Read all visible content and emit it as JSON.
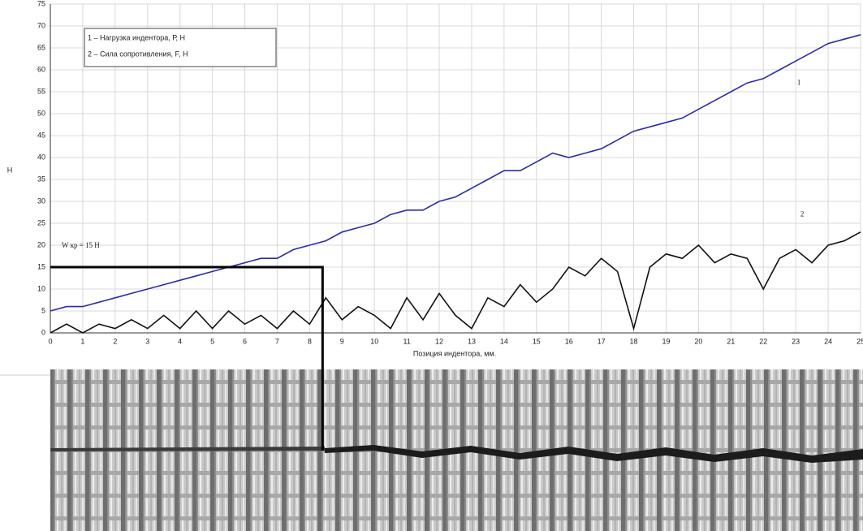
{
  "chart_data": {
    "type": "line",
    "y_label": "Н",
    "x_label": "Позиция индентора, мм.",
    "x": [
      0,
      0.5,
      1,
      1.5,
      2,
      2.5,
      3,
      3.5,
      4,
      4.5,
      5,
      5.5,
      6,
      6.5,
      7,
      7.5,
      8,
      8.5,
      9,
      9.5,
      10,
      10.5,
      11,
      11.5,
      12,
      12.5,
      13,
      13.5,
      14,
      14.5,
      15,
      15.5,
      16,
      16.5,
      17,
      17.5,
      18,
      18.5,
      19,
      19.5,
      20,
      20.5,
      21,
      21.5,
      22,
      22.5,
      23,
      23.5,
      24,
      24.5,
      25
    ],
    "series": [
      {
        "name": "1 – Нагрузка индентора, Р, Н",
        "color": "#2b2ba8",
        "values": [
          5,
          6,
          6,
          7,
          8,
          9,
          10,
          11,
          12,
          13,
          14,
          15,
          16,
          17,
          17,
          19,
          20,
          21,
          23,
          24,
          25,
          27,
          28,
          28,
          30,
          31,
          33,
          35,
          37,
          37,
          39,
          41,
          40,
          41,
          42,
          44,
          46,
          47,
          48,
          49,
          51,
          53,
          55,
          57,
          58,
          60,
          62,
          64,
          66,
          67,
          68
        ]
      },
      {
        "name": "2 – Сила сопротивления, F, Н",
        "color": "#111111",
        "values": [
          0,
          2,
          0,
          2,
          1,
          3,
          1,
          4,
          1,
          5,
          1,
          5,
          2,
          4,
          1,
          5,
          2,
          8,
          3,
          6,
          4,
          1,
          8,
          3,
          9,
          4,
          1,
          8,
          6,
          11,
          7,
          10,
          15,
          13,
          17,
          14,
          1,
          15,
          18,
          17,
          20,
          16,
          18,
          17,
          10,
          17,
          19,
          16,
          20,
          21,
          23
        ]
      }
    ],
    "xlim": [
      0,
      25
    ],
    "ylim": [
      0,
      75
    ],
    "xticks": [
      0,
      1,
      2,
      3,
      4,
      5,
      6,
      7,
      8,
      9,
      10,
      11,
      12,
      13,
      14,
      15,
      16,
      17,
      18,
      19,
      20,
      21,
      22,
      23,
      24,
      25
    ],
    "yticks": [
      0,
      5,
      10,
      15,
      20,
      25,
      30,
      35,
      40,
      45,
      50,
      55,
      60,
      65,
      70,
      75
    ],
    "grid": true,
    "annotations": [
      {
        "text": "1",
        "x": 23.1,
        "y": 57
      },
      {
        "text": "2",
        "x": 23.2,
        "y": 27
      },
      {
        "text": "W кр = 15 Н",
        "x": 8.4,
        "y": 15
      }
    ]
  }
}
